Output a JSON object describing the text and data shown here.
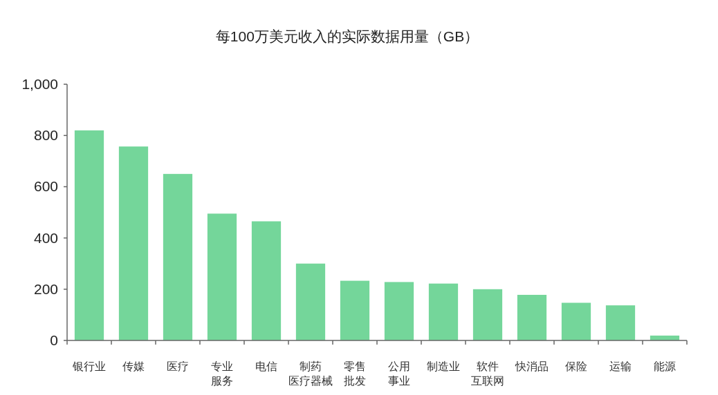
{
  "chart_data": {
    "type": "bar",
    "title": "每100万美元收入的实际数据用量（GB）",
    "categories": [
      "银行业",
      "传媒",
      "医疗",
      "专业服务",
      "电信",
      "制药医疗器械",
      "零售批发",
      "公用事业",
      "制造业",
      "软件互联网",
      "快消品",
      "保险",
      "运输",
      "能源"
    ],
    "values": [
      820,
      757,
      650,
      495,
      465,
      300,
      233,
      228,
      222,
      200,
      178,
      147,
      137,
      19
    ],
    "color": "#74d69a",
    "ylim": [
      0,
      1000
    ],
    "yticks": [
      0,
      200,
      400,
      600,
      800,
      {
        "value": 1000,
        "label": "1,000"
      }
    ]
  }
}
